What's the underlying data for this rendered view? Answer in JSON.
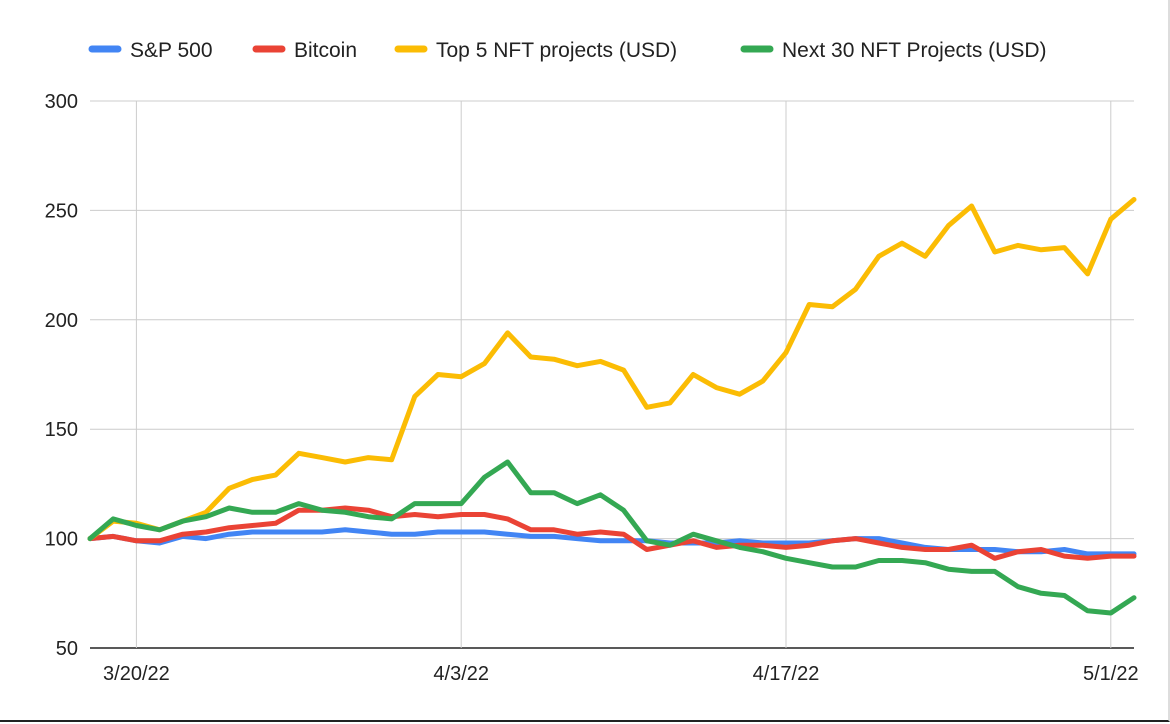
{
  "chart_data": {
    "type": "line",
    "title": "",
    "xlabel": "",
    "ylabel": "",
    "x": [
      "3/18/22",
      "3/19/22",
      "3/20/22",
      "3/21/22",
      "3/22/22",
      "3/23/22",
      "3/24/22",
      "3/25/22",
      "3/26/22",
      "3/27/22",
      "3/28/22",
      "3/29/22",
      "3/30/22",
      "3/31/22",
      "4/1/22",
      "4/2/22",
      "4/3/22",
      "4/4/22",
      "4/5/22",
      "4/6/22",
      "4/7/22",
      "4/8/22",
      "4/9/22",
      "4/10/22",
      "4/11/22",
      "4/12/22",
      "4/13/22",
      "4/14/22",
      "4/15/22",
      "4/16/22",
      "4/17/22",
      "4/18/22",
      "4/19/22",
      "4/20/22",
      "4/21/22",
      "4/22/22",
      "4/23/22",
      "4/24/22",
      "4/25/22",
      "4/26/22",
      "4/27/22",
      "4/28/22",
      "4/29/22",
      "4/30/22",
      "5/1/22",
      "5/2/22"
    ],
    "x_ticks": [
      "3/20/22",
      "4/3/22",
      "4/17/22",
      "5/1/22"
    ],
    "ylim": [
      50,
      300
    ],
    "y_ticks": [
      50,
      100,
      150,
      200,
      250,
      300
    ],
    "grid": true,
    "legend_position": "top",
    "series": [
      {
        "name": "S&P 500",
        "color": "#4285F4",
        "values": [
          100,
          101,
          99,
          98,
          101,
          100,
          102,
          103,
          103,
          103,
          103,
          104,
          103,
          102,
          102,
          103,
          103,
          103,
          102,
          101,
          101,
          100,
          99,
          99,
          99,
          98,
          98,
          98,
          99,
          98,
          98,
          98,
          99,
          100,
          100,
          98,
          96,
          95,
          95,
          95,
          94,
          94,
          95,
          93,
          93,
          93
        ]
      },
      {
        "name": "Bitcoin",
        "color": "#EA4335",
        "values": [
          100,
          101,
          99,
          99,
          102,
          103,
          105,
          106,
          107,
          113,
          113,
          114,
          113,
          110,
          111,
          110,
          111,
          111,
          109,
          104,
          104,
          102,
          103,
          102,
          95,
          97,
          99,
          96,
          97,
          97,
          96,
          97,
          99,
          100,
          98,
          96,
          95,
          95,
          97,
          91,
          94,
          95,
          92,
          91,
          92,
          92
        ]
      },
      {
        "name": "Top 5 NFT projects (USD)",
        "color": "#FBBC04",
        "values": [
          100,
          108,
          107,
          104,
          108,
          112,
          123,
          127,
          129,
          139,
          137,
          135,
          137,
          136,
          165,
          175,
          174,
          180,
          194,
          183,
          182,
          179,
          181,
          177,
          160,
          162,
          175,
          169,
          166,
          172,
          185,
          207,
          206,
          214,
          229,
          235,
          229,
          243,
          252,
          231,
          234,
          232,
          233,
          221,
          246,
          255
        ]
      },
      {
        "name": "Next 30 NFT Projects (USD)",
        "color": "#34A853",
        "values": [
          100,
          109,
          106,
          104,
          108,
          110,
          114,
          112,
          112,
          116,
          113,
          112,
          110,
          109,
          116,
          116,
          116,
          128,
          135,
          121,
          121,
          116,
          120,
          113,
          99,
          97,
          102,
          99,
          96,
          94,
          91,
          89,
          87,
          87,
          90,
          90,
          89,
          86,
          85,
          85,
          78,
          75,
          74,
          67,
          66,
          73
        ]
      }
    ]
  }
}
